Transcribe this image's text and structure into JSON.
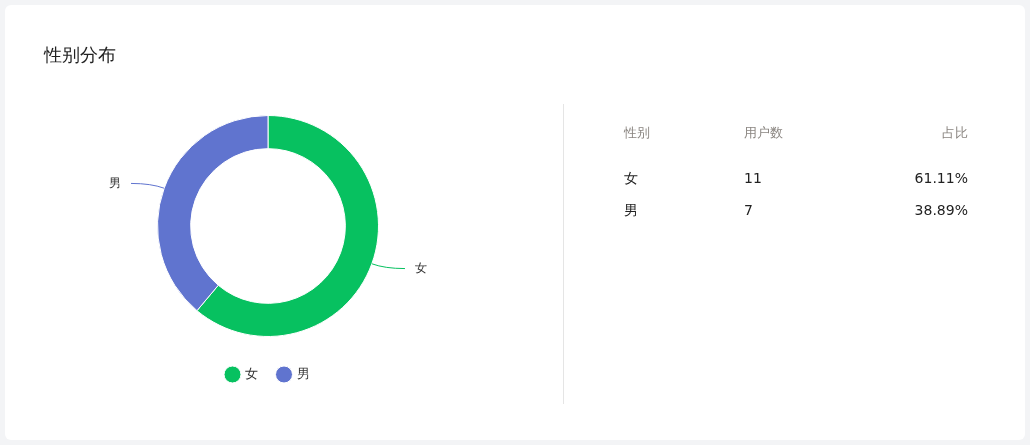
{
  "chart_data": [
    {
      "type": "donut",
      "title": "性别分布",
      "categories": [
        "女",
        "男"
      ],
      "values": [
        61.11,
        38.89
      ],
      "colors": [
        "#07c160",
        "#6074cf"
      ],
      "legend": "bottom"
    },
    {
      "type": "other",
      "annotations": [
        "性别",
        "用户数",
        "占比",
        "女",
        "11",
        "61.11%",
        "男",
        "7",
        "38.89%"
      ]
    }
  ]
}
